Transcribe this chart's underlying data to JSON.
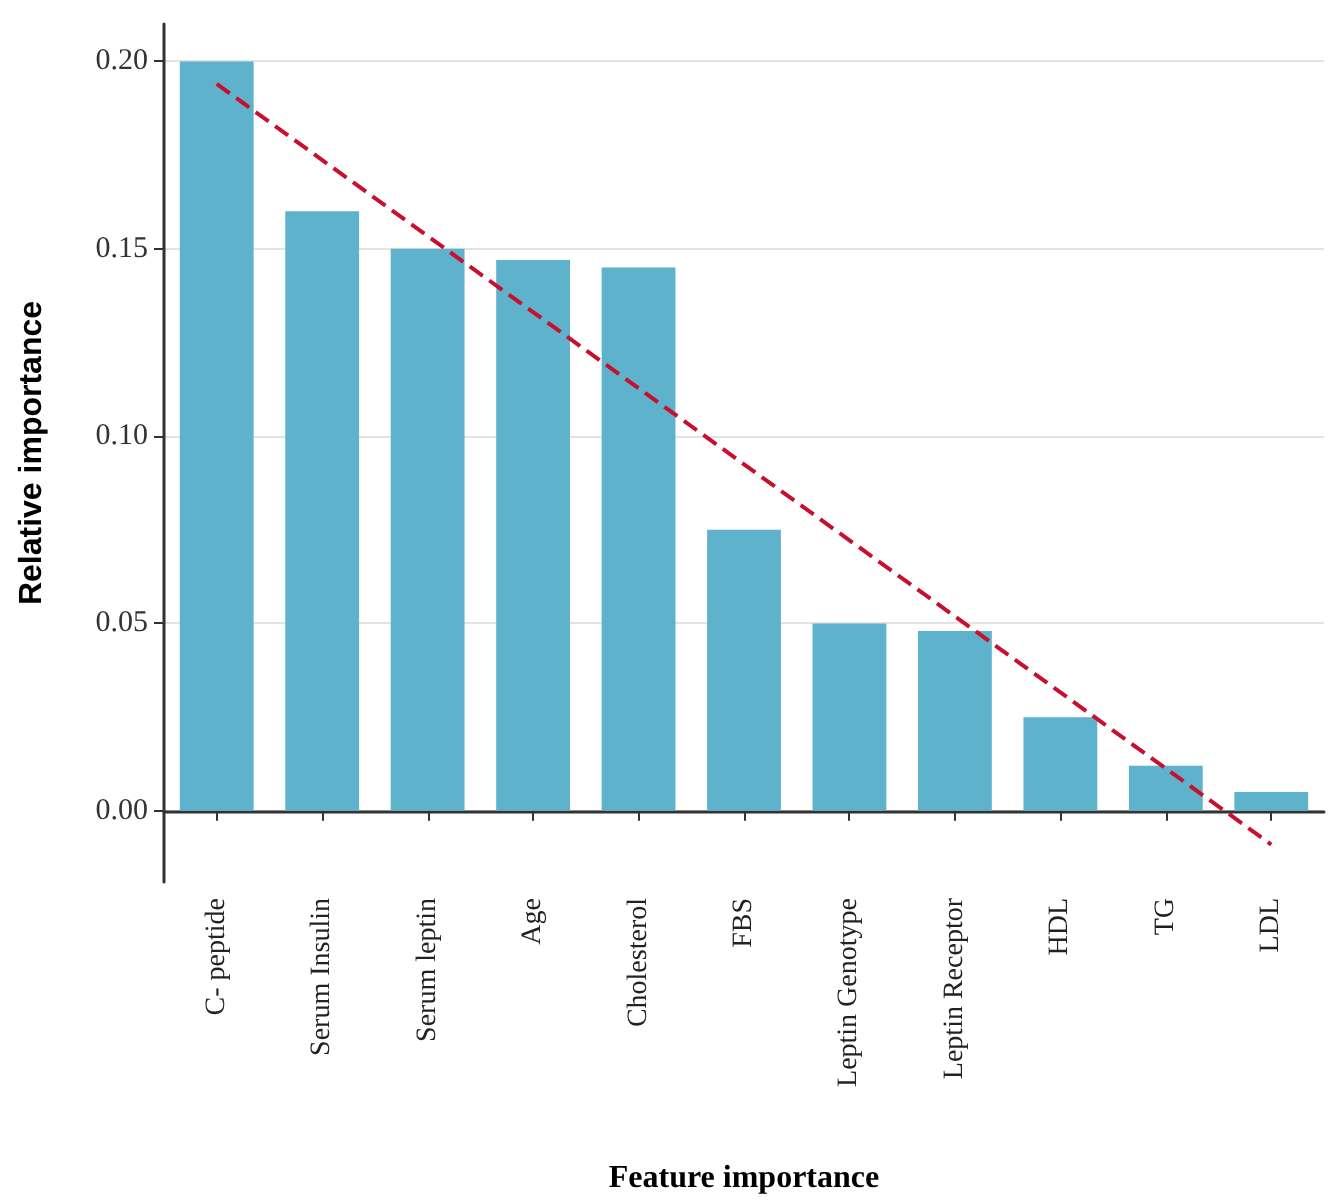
{
  "chart_data": {
    "type": "bar",
    "xlabel": "Feature importance",
    "ylabel": "Relative importance",
    "categories": [
      "C- peptide",
      "Serum Insulin",
      "Serum leptin",
      "Age",
      "Cholesterol",
      "FBS",
      "Leptin Genotype",
      "Leptin Receptor",
      "HDL",
      "TG",
      "LDL"
    ],
    "series": [
      {
        "color": "#5fb2cb",
        "values": [
          0.2,
          0.16,
          0.15,
          0.147,
          0.145,
          0.075,
          0.05,
          0.048,
          0.025,
          0.012,
          0.005
        ]
      },
      {
        "type": "line",
        "color": "#c8102e",
        "x": [
          "C- peptide",
          "LDL"
        ],
        "values": [
          0.194,
          -0.009
        ],
        "line_style": "dashed",
        "marker": "none"
      }
    ],
    "ylim": [
      -0.019,
      0.21
    ],
    "yticks": [
      {
        "value": 0,
        "label": "0.00"
      },
      {
        "value": 0.05,
        "label": "0.05"
      },
      {
        "value": 0.1,
        "label": "0.10"
      },
      {
        "value": 0.15,
        "label": "0.15"
      },
      {
        "value": 0.2,
        "label": "0.20"
      }
    ],
    "grid": "y"
  }
}
